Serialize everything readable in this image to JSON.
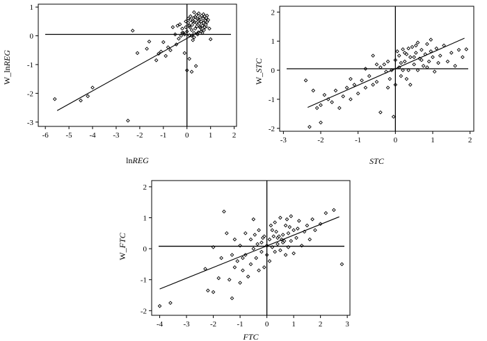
{
  "chart_data": [
    {
      "type": "scatter",
      "xlabel": "lnREG",
      "xlabel_prefix": "ln",
      "xlabel_italic": "REG",
      "ylabel": "W_lnREG",
      "ylabel_prefix": "W_ln",
      "ylabel_italic": "REG",
      "xlim": [
        -6.3,
        2.1
      ],
      "ylim": [
        -3.15,
        1.1
      ],
      "xticks": [
        -6,
        -5,
        -4,
        -3,
        -2,
        -1,
        0,
        1,
        2
      ],
      "yticks": [
        -3,
        -2,
        -1,
        0,
        1
      ],
      "ref_x": 0,
      "ref_y": 0.05,
      "fit_line": [
        [
          -5.5,
          -2.6
        ],
        [
          0.9,
          0.32
        ]
      ],
      "points": [
        [
          -5.6,
          -2.2
        ],
        [
          -4.5,
          -2.25
        ],
        [
          -4.0,
          -1.8
        ],
        [
          -4.2,
          -2.1
        ],
        [
          -2.5,
          -2.95
        ],
        [
          -2.3,
          0.18
        ],
        [
          -2.1,
          -0.6
        ],
        [
          -1.7,
          -0.45
        ],
        [
          -1.6,
          -0.2
        ],
        [
          -1.3,
          -0.85
        ],
        [
          -1.2,
          -0.62
        ],
        [
          -1.1,
          -0.55
        ],
        [
          -1.0,
          -0.22
        ],
        [
          -0.9,
          -0.7
        ],
        [
          -0.8,
          -0.4
        ],
        [
          -0.7,
          -0.5
        ],
        [
          -0.6,
          0.3
        ],
        [
          -0.5,
          0.05
        ],
        [
          -0.45,
          -0.3
        ],
        [
          -0.4,
          0.35
        ],
        [
          -0.35,
          -0.1
        ],
        [
          -0.3,
          0.4
        ],
        [
          -0.25,
          0.0
        ],
        [
          -0.2,
          0.25
        ],
        [
          -0.15,
          0.1
        ],
        [
          -0.1,
          -0.6
        ],
        [
          -0.1,
          0.05
        ],
        [
          -0.05,
          0.3
        ],
        [
          0.0,
          0.15
        ],
        [
          0.0,
          -1.2
        ],
        [
          0.05,
          0.45
        ],
        [
          0.1,
          -0.8
        ],
        [
          0.1,
          0.02
        ],
        [
          0.12,
          0.3
        ],
        [
          0.15,
          0.55
        ],
        [
          0.2,
          -1.25
        ],
        [
          0.2,
          0.2
        ],
        [
          0.22,
          0.38
        ],
        [
          0.25,
          -0.15
        ],
        [
          0.28,
          0.62
        ],
        [
          0.3,
          0.1
        ],
        [
          0.32,
          0.48
        ],
        [
          0.35,
          0.25
        ],
        [
          0.38,
          -1.05
        ],
        [
          0.4,
          0.72
        ],
        [
          0.42,
          0.33
        ],
        [
          0.45,
          0.58
        ],
        [
          0.48,
          0.12
        ],
        [
          0.5,
          0.78
        ],
        [
          0.52,
          0.42
        ],
        [
          0.55,
          0.65
        ],
        [
          0.58,
          0.27
        ],
        [
          0.6,
          0.5
        ],
        [
          0.62,
          0.7
        ],
        [
          0.65,
          0.35
        ],
        [
          0.68,
          0.6
        ],
        [
          0.7,
          0.45
        ],
        [
          0.72,
          0.2
        ],
        [
          0.75,
          0.68
        ],
        [
          0.78,
          0.52
        ],
        [
          0.8,
          0.38
        ],
        [
          0.82,
          0.62
        ],
        [
          0.85,
          0.48
        ],
        [
          0.9,
          0.55
        ],
        [
          0.95,
          0.25
        ],
        [
          1.0,
          -0.12
        ],
        [
          0.3,
          0.82
        ],
        [
          0.15,
          0.68
        ],
        [
          0.05,
          0.6
        ],
        [
          -0.05,
          0.5
        ],
        [
          0.45,
          0.05
        ],
        [
          0.6,
          0.15
        ],
        [
          0.25,
          0.5
        ],
        [
          0.35,
          0.65
        ],
        [
          0.55,
          0.3
        ],
        [
          0.7,
          0.75
        ],
        [
          0.4,
          0.45
        ],
        [
          0.65,
          0.1
        ],
        [
          0.2,
          0.0
        ],
        [
          0.1,
          0.35
        ],
        [
          -0.2,
          0.1
        ],
        [
          0.5,
          0.55
        ],
        [
          0.75,
          0.3
        ],
        [
          0.85,
          0.7
        ],
        [
          0.3,
          -0.05
        ]
      ]
    },
    {
      "type": "scatter",
      "xlabel": "STC",
      "xlabel_prefix": "",
      "xlabel_italic": "STC",
      "ylabel": "W_STC",
      "ylabel_prefix": "W_",
      "ylabel_italic": "STC",
      "xlim": [
        -3.1,
        2.1
      ],
      "ylim": [
        -2.1,
        2.2
      ],
      "xticks": [
        -3,
        -2,
        -1,
        0,
        1,
        2
      ],
      "yticks": [
        -2,
        -1,
        0,
        1,
        2
      ],
      "ref_x": 0,
      "ref_y": 0.05,
      "fit_line": [
        [
          -2.35,
          -1.28
        ],
        [
          1.85,
          1.1
        ]
      ],
      "points": [
        [
          -2.4,
          -0.35
        ],
        [
          -2.3,
          -1.95
        ],
        [
          -2.2,
          -0.7
        ],
        [
          -2.1,
          -1.3
        ],
        [
          -2.0,
          -1.8
        ],
        [
          -2.0,
          -1.2
        ],
        [
          -1.9,
          -0.85
        ],
        [
          -1.8,
          -1.0
        ],
        [
          -1.7,
          -1.1
        ],
        [
          -1.6,
          -0.7
        ],
        [
          -1.5,
          -1.3
        ],
        [
          -1.4,
          -0.9
        ],
        [
          -1.3,
          -0.6
        ],
        [
          -1.2,
          -1.0
        ],
        [
          -1.1,
          -0.5
        ],
        [
          -1.0,
          -0.8
        ],
        [
          -0.9,
          -0.35
        ],
        [
          -0.8,
          -0.6
        ],
        [
          -0.7,
          -0.2
        ],
        [
          -0.6,
          0.5
        ],
        [
          -0.5,
          -0.4
        ],
        [
          -0.4,
          0.1
        ],
        [
          -0.4,
          -1.45
        ],
        [
          -0.3,
          0.2
        ],
        [
          -0.25,
          -0.05
        ],
        [
          -0.2,
          0.3
        ],
        [
          -0.15,
          -0.3
        ],
        [
          -0.1,
          0.0
        ],
        [
          -0.05,
          -1.6
        ],
        [
          0.0,
          0.35
        ],
        [
          0.05,
          0.65
        ],
        [
          0.1,
          0.1
        ],
        [
          0.1,
          0.5
        ],
        [
          0.15,
          -0.2
        ],
        [
          0.2,
          0.72
        ],
        [
          0.25,
          0.3
        ],
        [
          0.3,
          0.55
        ],
        [
          0.35,
          0.0
        ],
        [
          0.4,
          0.45
        ],
        [
          0.45,
          0.8
        ],
        [
          0.5,
          0.2
        ],
        [
          0.55,
          0.6
        ],
        [
          0.6,
          0.95
        ],
        [
          0.65,
          0.4
        ],
        [
          0.7,
          0.7
        ],
        [
          0.75,
          0.15
        ],
        [
          0.8,
          0.55
        ],
        [
          0.85,
          0.9
        ],
        [
          0.9,
          0.3
        ],
        [
          0.95,
          0.65
        ],
        [
          1.0,
          0.45
        ],
        [
          1.05,
          -0.05
        ],
        [
          1.1,
          0.75
        ],
        [
          1.2,
          0.5
        ],
        [
          1.3,
          0.85
        ],
        [
          1.4,
          0.3
        ],
        [
          1.5,
          0.6
        ],
        [
          1.6,
          0.15
        ],
        [
          1.7,
          0.7
        ],
        [
          1.8,
          0.45
        ],
        [
          1.9,
          0.72
        ],
        [
          0.0,
          -0.5
        ],
        [
          0.3,
          -0.3
        ],
        [
          -0.5,
          0.2
        ],
        [
          0.2,
          0.0
        ],
        [
          0.4,
          -0.5
        ],
        [
          0.6,
          0.0
        ],
        [
          0.7,
          0.35
        ],
        [
          0.5,
          0.45
        ],
        [
          0.25,
          0.6
        ],
        [
          0.15,
          0.25
        ],
        [
          -0.2,
          -0.6
        ],
        [
          -0.6,
          -0.5
        ],
        [
          -1.2,
          -0.3
        ],
        [
          0.85,
          0.1
        ],
        [
          1.15,
          0.25
        ],
        [
          0.95,
          1.05
        ],
        [
          0.55,
          0.85
        ],
        [
          0.35,
          0.75
        ],
        [
          -0.8,
          0.05
        ]
      ]
    },
    {
      "type": "scatter",
      "xlabel": "FTC",
      "xlabel_prefix": "",
      "xlabel_italic": "FTC",
      "ylabel": "W_FTC",
      "ylabel_prefix": "W_",
      "ylabel_italic": "FTC",
      "xlim": [
        -4.3,
        3.1
      ],
      "ylim": [
        -2.15,
        2.2
      ],
      "xticks": [
        -4,
        -3,
        -2,
        -1,
        0,
        1,
        2,
        3
      ],
      "yticks": [
        -2,
        -1,
        0,
        1,
        2
      ],
      "ref_x": 0,
      "ref_y": 0.08,
      "fit_line": [
        [
          -4.0,
          -1.3
        ],
        [
          2.7,
          1.03
        ]
      ],
      "points": [
        [
          -4.0,
          -1.85
        ],
        [
          -3.6,
          -1.75
        ],
        [
          -2.3,
          -0.65
        ],
        [
          -2.2,
          -1.35
        ],
        [
          -2.0,
          -1.4
        ],
        [
          -2.0,
          0.05
        ],
        [
          -1.8,
          -0.95
        ],
        [
          -1.7,
          -0.3
        ],
        [
          -1.6,
          1.2
        ],
        [
          -1.5,
          0.5
        ],
        [
          -1.4,
          -1.0
        ],
        [
          -1.3,
          -0.2
        ],
        [
          -1.3,
          -1.6
        ],
        [
          -1.2,
          -0.6
        ],
        [
          -1.1,
          -0.4
        ],
        [
          -1.0,
          0.1
        ],
        [
          -1.0,
          -1.1
        ],
        [
          -0.9,
          -0.7
        ],
        [
          -0.8,
          0.5
        ],
        [
          -0.8,
          -0.2
        ],
        [
          -0.7,
          -0.9
        ],
        [
          -0.6,
          0.3
        ],
        [
          -0.6,
          -0.5
        ],
        [
          -0.5,
          0.95
        ],
        [
          -0.5,
          0.0
        ],
        [
          -0.4,
          -0.3
        ],
        [
          -0.3,
          0.6
        ],
        [
          -0.3,
          -0.7
        ],
        [
          -0.2,
          0.2
        ],
        [
          -0.2,
          -0.1
        ],
        [
          -0.1,
          0.4
        ],
        [
          -0.1,
          -0.6
        ],
        [
          0.0,
          0.1
        ],
        [
          0.0,
          -0.2
        ],
        [
          0.1,
          0.3
        ],
        [
          0.1,
          -0.4
        ],
        [
          0.2,
          0.6
        ],
        [
          0.2,
          0.05
        ],
        [
          0.3,
          -0.1
        ],
        [
          0.3,
          0.85
        ],
        [
          0.4,
          0.35
        ],
        [
          0.4,
          0.15
        ],
        [
          0.5,
          1.0
        ],
        [
          0.5,
          -0.05
        ],
        [
          0.6,
          0.45
        ],
        [
          0.6,
          0.2
        ],
        [
          0.7,
          0.75
        ],
        [
          0.7,
          -0.2
        ],
        [
          0.8,
          0.5
        ],
        [
          0.8,
          0.05
        ],
        [
          0.9,
          1.05
        ],
        [
          0.9,
          0.25
        ],
        [
          1.0,
          0.6
        ],
        [
          1.0,
          -0.15
        ],
        [
          1.1,
          0.35
        ],
        [
          1.2,
          0.9
        ],
        [
          1.3,
          0.1
        ],
        [
          1.4,
          0.55
        ],
        [
          1.5,
          0.75
        ],
        [
          1.6,
          0.3
        ],
        [
          1.7,
          0.95
        ],
        [
          1.8,
          0.6
        ],
        [
          2.0,
          0.8
        ],
        [
          2.2,
          1.15
        ],
        [
          2.5,
          1.25
        ],
        [
          2.8,
          -0.5
        ],
        [
          0.45,
          0.4
        ],
        [
          0.55,
          0.3
        ],
        [
          0.65,
          0.25
        ],
        [
          0.35,
          0.55
        ],
        [
          0.25,
          0.4
        ],
        [
          -0.15,
          0.35
        ],
        [
          0.15,
          0.75
        ],
        [
          -0.45,
          0.45
        ],
        [
          0.75,
          0.95
        ],
        [
          -1.2,
          0.3
        ],
        [
          -0.9,
          -0.3
        ],
        [
          1.15,
          0.65
        ],
        [
          0.85,
          0.7
        ],
        [
          -0.35,
          0.15
        ]
      ]
    }
  ]
}
